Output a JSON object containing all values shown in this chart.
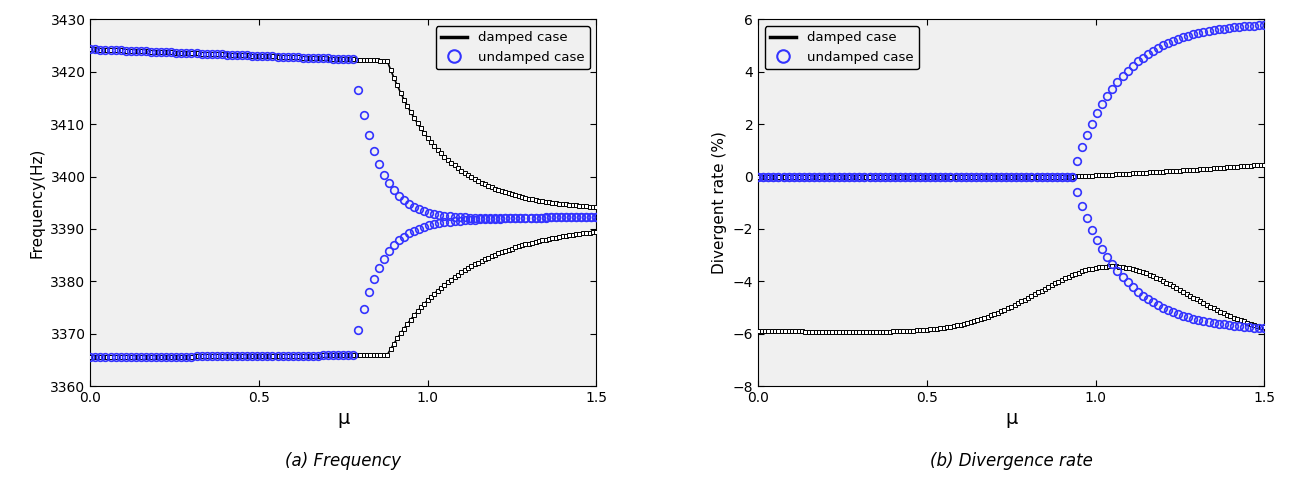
{
  "fig_width": 12.9,
  "fig_height": 4.95,
  "dpi": 100,
  "left_title": "(a) Frequency",
  "right_title": "(b) Divergence rate",
  "left_ylabel": "Frequency(Hz)",
  "right_ylabel": "Divergent rate (%)",
  "xlabel": "μ",
  "xlim": [
    0,
    1.5
  ],
  "freq_ylim": [
    3360,
    3430
  ],
  "freq_yticks": [
    3360,
    3370,
    3380,
    3390,
    3400,
    3410,
    3420,
    3430
  ],
  "div_ylim": [
    -8,
    6
  ],
  "div_yticks": [
    -8,
    -6,
    -4,
    -2,
    0,
    2,
    4,
    6
  ],
  "legend_labels": [
    "damped case",
    "undamped case"
  ],
  "damped_color": "#000000",
  "undamped_color": "#3333FF",
  "facecolor": "#f0f0f0"
}
